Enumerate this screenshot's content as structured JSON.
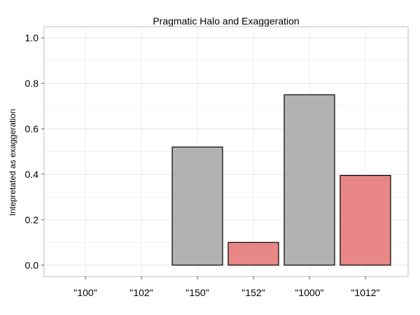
{
  "chart_data": {
    "type": "bar",
    "title": "Pragmatic Halo and Exaggeration",
    "xlabel": "",
    "ylabel": "Intepretated as exaggeration",
    "categories": [
      "\"100\"",
      "\"102\"",
      "\"150\"",
      "\"152\"",
      "\"1000\"",
      "\"1012\""
    ],
    "values": [
      0.0,
      0.0,
      0.52,
      0.1,
      0.75,
      0.395
    ],
    "bar_colors": [
      "#b2b2b2",
      "#b2b2b2",
      "#b2b2b2",
      "#e98787",
      "#b2b2b2",
      "#e98787"
    ],
    "ylim": [
      -0.05,
      1.05
    ],
    "yticks": [
      0.0,
      0.2,
      0.4,
      0.6,
      0.8,
      1.0
    ],
    "ytick_labels": [
      "0.0",
      "0.2",
      "0.4",
      "0.6",
      "0.8",
      "1.0"
    ],
    "grid": true,
    "legend": "none"
  }
}
